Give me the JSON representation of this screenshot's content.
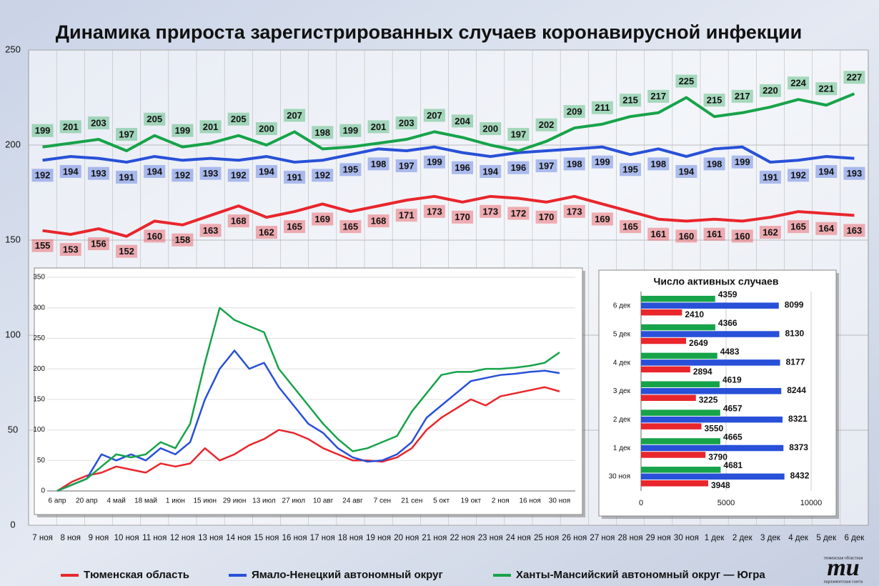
{
  "chart_data": [
    {
      "type": "line",
      "title": "Динамика прироста зарегистрированных случаев коронавирусной инфекции",
      "categories": [
        "7 ноя",
        "8 ноя",
        "9 ноя",
        "10 ноя",
        "11 ноя",
        "12 ноя",
        "13 ноя",
        "14 ноя",
        "15 ноя",
        "16 ноя",
        "17 ноя",
        "18 ноя",
        "19 ноя",
        "20 ноя",
        "21 ноя",
        "22 ноя",
        "23 ноя",
        "24 ноя",
        "25 ноя",
        "26 ноя",
        "27 ноя",
        "28 ноя",
        "29 ноя",
        "30 ноя",
        "1 дек",
        "2 дек",
        "3 дек",
        "4 дек",
        "5 дек",
        "6 дек"
      ],
      "series": [
        {
          "name": "Тюменская область",
          "color": "#e8262c",
          "values": [
            155,
            153,
            156,
            152,
            160,
            158,
            163,
            168,
            162,
            165,
            169,
            165,
            168,
            171,
            173,
            170,
            173,
            172,
            170,
            173,
            169,
            165,
            161,
            160,
            161,
            160,
            162,
            165,
            164,
            163
          ]
        },
        {
          "name": "Ямало-Ненецкий автономный округ",
          "color": "#2850d8",
          "values": [
            192,
            194,
            193,
            191,
            194,
            192,
            193,
            192,
            194,
            191,
            192,
            195,
            198,
            197,
            199,
            196,
            194,
            196,
            197,
            198,
            199,
            195,
            198,
            194,
            198,
            199,
            191,
            192,
            194,
            193
          ]
        },
        {
          "name": "Ханты-Мансийский автономный округ — Югра",
          "color": "#17a34a",
          "values": [
            199,
            201,
            203,
            197,
            205,
            199,
            201,
            205,
            200,
            207,
            198,
            199,
            201,
            203,
            207,
            204,
            200,
            197,
            202,
            209,
            211,
            215,
            217,
            225,
            215,
            217,
            220,
            224,
            221,
            227
          ]
        }
      ],
      "ylim": [
        0,
        250
      ],
      "yticks": [
        0,
        50,
        100,
        150,
        200,
        250
      ],
      "grid": true
    },
    {
      "type": "line",
      "categories": [
        "6 апр",
        null,
        "20 апр",
        null,
        "4 май",
        null,
        "18 май",
        null,
        "1 июн",
        null,
        "15 июн",
        null,
        "29 июн",
        null,
        "13 июл",
        null,
        "27 июл",
        null,
        "10 авг",
        null,
        "24 авг",
        null,
        "7 сен",
        null,
        "21 сен",
        null,
        "5 окт",
        null,
        "19 окт",
        null,
        "2 ноя",
        null,
        "16 ноя",
        null,
        "30 ноя"
      ],
      "series": [
        {
          "color": "#e8262c",
          "values": [
            0,
            15,
            25,
            30,
            40,
            35,
            30,
            45,
            40,
            45,
            70,
            50,
            60,
            75,
            85,
            100,
            95,
            85,
            70,
            60,
            50,
            50,
            48,
            55,
            70,
            100,
            120,
            135,
            150,
            140,
            155,
            160,
            165,
            170,
            163
          ]
        },
        {
          "color": "#2850d8",
          "values": [
            0,
            10,
            20,
            60,
            50,
            60,
            50,
            70,
            60,
            80,
            150,
            200,
            230,
            200,
            210,
            170,
            140,
            110,
            95,
            70,
            55,
            48,
            50,
            60,
            80,
            120,
            140,
            160,
            180,
            185,
            190,
            192,
            195,
            197,
            193
          ]
        },
        {
          "color": "#17a34a",
          "values": [
            0,
            10,
            20,
            40,
            60,
            55,
            60,
            80,
            70,
            110,
            210,
            300,
            280,
            270,
            260,
            200,
            170,
            140,
            110,
            85,
            65,
            70,
            80,
            90,
            130,
            160,
            190,
            195,
            195,
            200,
            200,
            202,
            205,
            210,
            227
          ]
        }
      ],
      "ylim": [
        0,
        350
      ],
      "yticks": [
        0,
        50,
        100,
        150,
        200,
        250,
        300,
        350
      ],
      "grid": true
    },
    {
      "type": "hbar",
      "title": "Число активных случаев",
      "categories": [
        "30 ноя",
        "1 дек",
        "2 дек",
        "3 дек",
        "4 дек",
        "5 дек",
        "6 дек"
      ],
      "series": [
        {
          "color": "#17a34a",
          "values": [
            4681,
            4665,
            4657,
            4619,
            4483,
            4366,
            4359
          ]
        },
        {
          "color": "#2850d8",
          "values": [
            8432,
            8373,
            8321,
            8244,
            8177,
            8130,
            8099
          ]
        },
        {
          "color": "#e8262c",
          "values": [
            3948,
            3790,
            3550,
            3225,
            2894,
            2649,
            2410
          ]
        }
      ],
      "xlim": [
        0,
        10000
      ],
      "xticks": [
        0,
        5000,
        10000
      ],
      "grid": true
    }
  ],
  "logo": {
    "mark": "mu",
    "top": "тюменская областная",
    "bottom": "парламентская газета"
  }
}
